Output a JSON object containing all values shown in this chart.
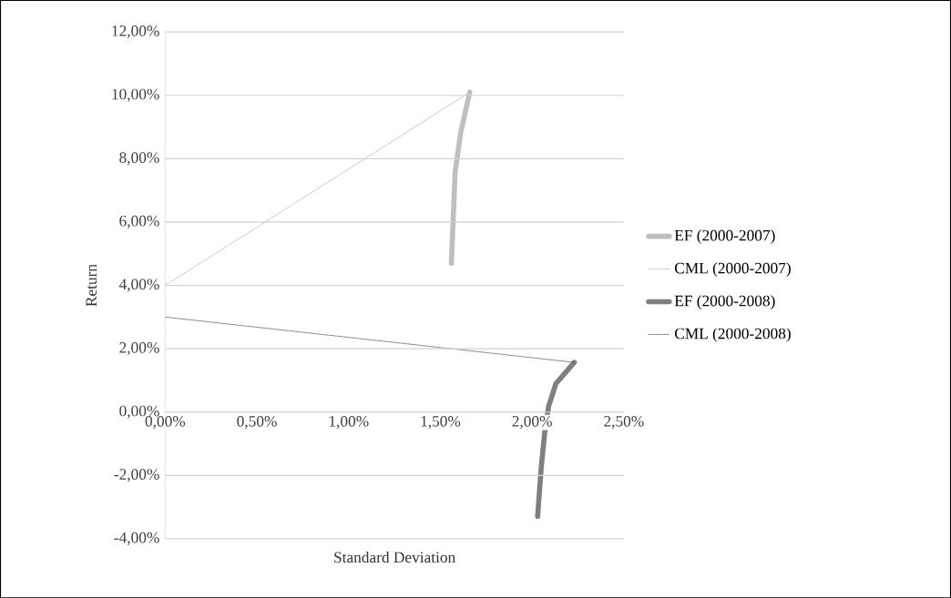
{
  "chart_data": {
    "type": "line",
    "xlabel": "Standard Deviation",
    "ylabel": "Return",
    "xlim": [
      0,
      2.5
    ],
    "ylim": [
      -4,
      12
    ],
    "xticks": [
      {
        "value": 0,
        "label": "0,00%"
      },
      {
        "value": 0.5,
        "label": "0,50%"
      },
      {
        "value": 1,
        "label": "1,00%"
      },
      {
        "value": 1.5,
        "label": "1,50%"
      },
      {
        "value": 2,
        "label": "2,00%"
      },
      {
        "value": 2.5,
        "label": "2,50%"
      }
    ],
    "yticks": [
      {
        "value": -4,
        "label": "-4,00%"
      },
      {
        "value": -2,
        "label": "-2,00%"
      },
      {
        "value": 0,
        "label": "0,00%"
      },
      {
        "value": 2,
        "label": "2,00%"
      },
      {
        "value": 4,
        "label": "4,00%"
      },
      {
        "value": 6,
        "label": "6,00%"
      },
      {
        "value": 8,
        "label": "8,00%"
      },
      {
        "value": 10,
        "label": "10,00%"
      },
      {
        "value": 12,
        "label": "12,00%"
      }
    ],
    "grid": "y",
    "legend": "right",
    "marker": "none",
    "series": [
      {
        "name": "EF (2000-2007)",
        "color": "#bfbfbf",
        "line_style": "solid",
        "x": [
          1.56,
          1.57,
          1.58,
          1.61,
          1.66
        ],
        "values": [
          4.7,
          6.1,
          7.55,
          8.8,
          10.1
        ]
      },
      {
        "name": "CML (2000-2007)",
        "color": "#bfbfbf",
        "line_style": "solid",
        "x": [
          0,
          1.66
        ],
        "values": [
          4.0,
          10.1
        ]
      },
      {
        "name": "EF (2000-2008)",
        "color": "#7f7f7f",
        "line_style": "solid",
        "x": [
          2.03,
          2.05,
          2.07,
          2.09,
          2.13,
          2.23
        ],
        "values": [
          -3.3,
          -1.73,
          -0.58,
          0.18,
          0.9,
          1.57
        ]
      },
      {
        "name": "CML (2000-2008)",
        "color": "#404040",
        "line_style": "dotted",
        "x": [
          0,
          2.23
        ],
        "values": [
          3.0,
          1.57
        ]
      }
    ]
  }
}
